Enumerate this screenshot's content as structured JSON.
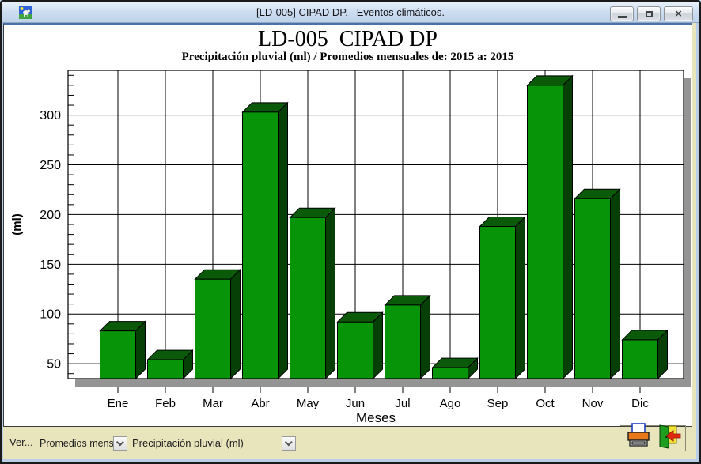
{
  "window": {
    "title": "[LD-005] CIPAD DP.   Eventos climáticos."
  },
  "chart_data": {
    "type": "bar",
    "title": "LD-005  CIPAD DP",
    "subtitle": "Precipitación pluvial (ml) / Promedios mensuales de: 2015 a: 2015",
    "categories": [
      "Ene",
      "Feb",
      "Mar",
      "Abr",
      "May",
      "Jun",
      "Jul",
      "Ago",
      "Sep",
      "Oct",
      "Nov",
      "Dic"
    ],
    "values": [
      83,
      54,
      135,
      303,
      197,
      92,
      109,
      46,
      188,
      330,
      216,
      74
    ],
    "xlabel": "Meses",
    "ylabel": "(ml)",
    "yticks": [
      50,
      100,
      150,
      200,
      250,
      300
    ],
    "ylim": [
      35,
      345
    ],
    "minor_tick_step": 10,
    "grid": true,
    "legend": "none",
    "bar_front_color": "#089408",
    "bar_top_color": "#0a5a0a",
    "bar_side_color": "#064006",
    "shadow_color": "#949494",
    "grid_color": "#000000",
    "plot_bg": "#ffffff"
  },
  "toolbar": {
    "ver_label": "Ver...",
    "view_combo_value": "Promedios mensu",
    "metric_combo_value": "Precipitación pluvial (ml)",
    "printer_icon": "printer-icon",
    "exit_icon": "exit-door-icon"
  },
  "colors": {
    "titlebar": "#cfdff2",
    "form_background": "#e8e4bc",
    "frame_blue": "#b9cfe8"
  }
}
